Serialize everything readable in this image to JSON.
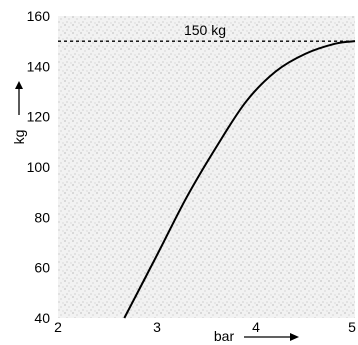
{
  "chart_data": {
    "type": "line",
    "title": "",
    "xlabel": "bar",
    "ylabel": "kg",
    "xlim": [
      2,
      5
    ],
    "ylim": [
      40,
      160
    ],
    "x_ticks": [
      "2",
      "3",
      "4",
      "5"
    ],
    "y_ticks": [
      "40",
      "60",
      "80",
      "100",
      "120",
      "140",
      "160"
    ],
    "grid": false,
    "background": "stippled light gray",
    "series": [
      {
        "x": [
          2.67,
          3.0,
          3.3,
          3.6,
          3.9,
          4.2,
          4.5,
          4.8,
          5.0
        ],
        "y": [
          40,
          65,
          88,
          108,
          126,
          138,
          145,
          149,
          150
        ]
      }
    ],
    "reference_line": {
      "y": 150,
      "style": "dashed",
      "label": "150 kg"
    }
  }
}
